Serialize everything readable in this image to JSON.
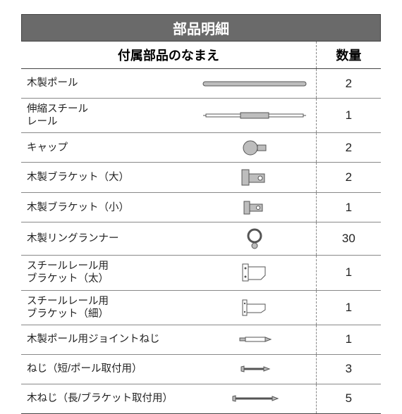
{
  "title": "部品明細",
  "headers": {
    "name": "付属部品のなまえ",
    "qty": "数量"
  },
  "title_fontsize": 20,
  "header_fontsize": 18,
  "body_fontsize": 14.5,
  "qty_fontsize": 17,
  "colors": {
    "title_bg": "#6a6a6a",
    "title_fg": "#ffffff",
    "border": "#444444",
    "row_border": "#888888",
    "dash_border": "#888888",
    "text": "#222222",
    "icon_stroke": "#555555",
    "icon_fill": "#bdbdbd"
  },
  "column_widths_pct": [
    48,
    34,
    18
  ],
  "rows": [
    {
      "name": "木製ポール",
      "qty": 2,
      "icon": "pole"
    },
    {
      "name": "伸縮スチール\nレール",
      "qty": 1,
      "icon": "rail"
    },
    {
      "name": "キャップ",
      "qty": 2,
      "icon": "cap"
    },
    {
      "name": "木製ブラケット（大）",
      "qty": 2,
      "icon": "bracket-large"
    },
    {
      "name": "木製ブラケット（小）",
      "qty": 1,
      "icon": "bracket-small"
    },
    {
      "name": "木製リングランナー",
      "qty": 30,
      "icon": "ring"
    },
    {
      "name": "スチールレール用\nブラケット（太）",
      "qty": 1,
      "icon": "steel-bracket-thick"
    },
    {
      "name": "スチールレール用\nブラケット（細）",
      "qty": 1,
      "icon": "steel-bracket-thin"
    },
    {
      "name": "木製ポール用ジョイントねじ",
      "qty": 1,
      "icon": "joint-screw"
    },
    {
      "name": "ねじ（短/ポール取付用）",
      "qty": 3,
      "icon": "screw-short"
    },
    {
      "name": "木ねじ（長/ブラケット取付用）",
      "qty": 5,
      "icon": "screw-long"
    }
  ]
}
